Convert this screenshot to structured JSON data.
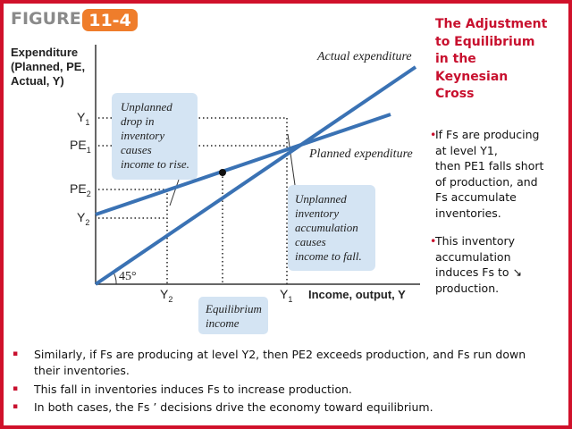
{
  "figure": {
    "label": "FIGURE",
    "number": "11-4"
  },
  "title": [
    "The Adjustment",
    "to Equilibrium",
    "in the",
    "Keynesian",
    "Cross"
  ],
  "diagram": {
    "y_axis_label": [
      "Expenditure",
      "(Planned, PE,",
      "Actual, Y)"
    ],
    "x_axis_label": "Income, output, Y",
    "actual_line_label": "Actual expenditure",
    "planned_line_label": "Planned expenditure",
    "angle_label": "45°",
    "y_labels": [
      {
        "text": "Y",
        "sub": "1"
      },
      {
        "text": "PE",
        "sub": "1"
      },
      {
        "text": "PE",
        "sub": "2"
      },
      {
        "text": "Y",
        "sub": "2"
      }
    ],
    "x_labels": [
      {
        "text": "Y",
        "sub": "2"
      },
      {
        "text": "Y",
        "sub": "1"
      }
    ],
    "box_drop": [
      "Unplanned",
      "drop in",
      "inventory",
      "causes",
      "income to rise."
    ],
    "box_accumulation": [
      "Unplanned",
      "inventory",
      "accumulation",
      "causes",
      "income to fall."
    ],
    "equilibrium": [
      "Equilibrium",
      "income"
    ]
  },
  "side_bullets": [
    [
      "If Fs are producing",
      "at level Y1,",
      "then PE1 falls short",
      "of production, and",
      "Fs  accumulate",
      "inventories."
    ],
    [
      "This inventory",
      "accumulation",
      "induces Fs  to ↘",
      "production."
    ]
  ],
  "bottom_bullets": [
    [
      "Similarly, if Fs  are producing at level Y2, then PE2 exceeds production, and Fs  run down",
      "their inventories."
    ],
    [
      "This fall in inventories induces Fs  to increase production."
    ],
    [
      "In both cases, the Fs ’ decisions drive the economy toward equilibrium."
    ]
  ]
}
